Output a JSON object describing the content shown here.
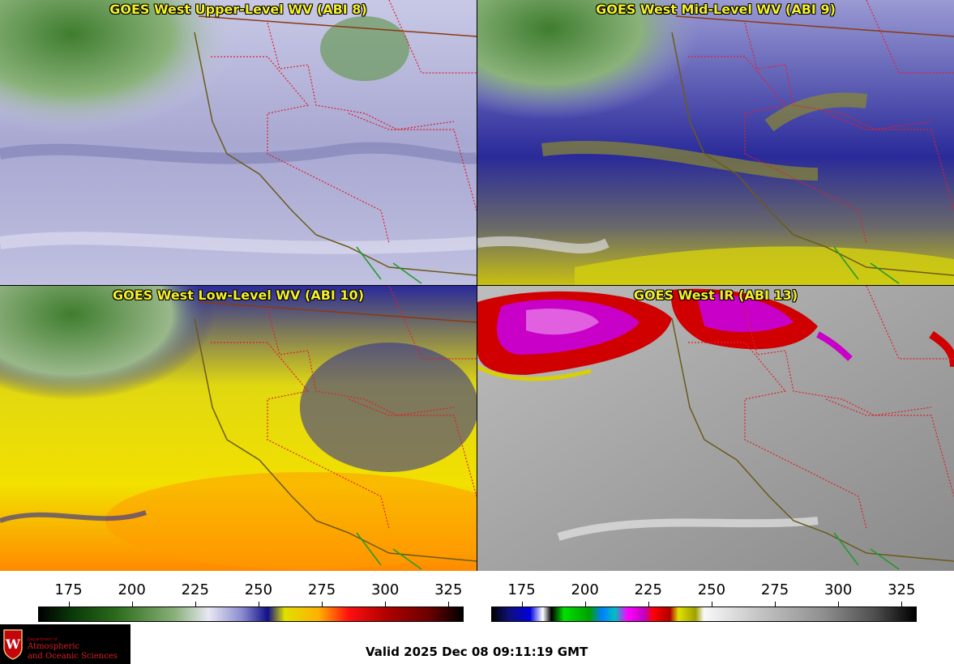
{
  "panels": [
    {
      "title": "GOES West Upper-Level WV (ABI 8)"
    },
    {
      "title": "GOES West Mid-Level WV (ABI 9)"
    },
    {
      "title": "GOES West Low-Level WV (ABI 10)"
    },
    {
      "title": "GOES West IR (ABI 13)"
    }
  ],
  "colorbars": {
    "wv": {
      "ticks": [
        "175",
        "200",
        "225",
        "250",
        "275",
        "300",
        "325"
      ],
      "tick_values": [
        175,
        200,
        225,
        250,
        275,
        300,
        325
      ],
      "range": [
        163,
        331
      ]
    },
    "ir": {
      "ticks": [
        "175",
        "200",
        "225",
        "250",
        "275",
        "300",
        "325"
      ],
      "tick_values": [
        175,
        200,
        225,
        250,
        275,
        300,
        325
      ],
      "range": [
        163,
        331
      ]
    }
  },
  "logo": {
    "dept": "Department of",
    "line1": "Atmospheric",
    "line2": "and Oceanic Sciences",
    "seal_letter": "W"
  },
  "valid_time": "Valid 2025 Dec 08 09:11:19 GMT",
  "colors": {
    "title_text": "#f4ef2a",
    "state_border": "#e0202a",
    "coastline": "#6b5a1a",
    "mexico_border": "#1f9a2a"
  }
}
